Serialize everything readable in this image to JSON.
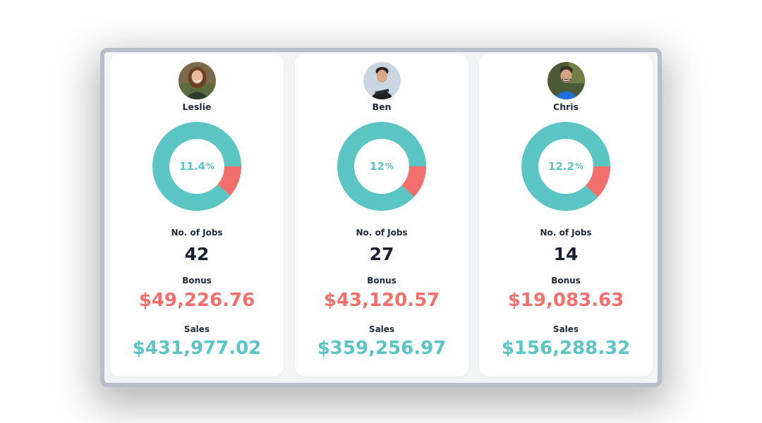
{
  "colors": {
    "teal": "#5bc5c3",
    "coral": "#f36f6c",
    "dark": "#1a2030"
  },
  "labels": {
    "jobs": "No. of Jobs",
    "bonus": "Bonus",
    "sales": "Sales"
  },
  "people": [
    {
      "name": "Leslie",
      "pct_value": "11.4",
      "pct_sign": "%",
      "pct_fraction": 0.114,
      "jobs": "42",
      "bonus": "$49,226.76",
      "sales": "$431,977.02"
    },
    {
      "name": "Ben",
      "pct_value": "12",
      "pct_sign": "%",
      "pct_fraction": 0.12,
      "jobs": "27",
      "bonus": "$43,120.57",
      "sales": "$359,256.97"
    },
    {
      "name": "Chris",
      "pct_value": "12.2",
      "pct_sign": "%",
      "pct_fraction": 0.122,
      "jobs": "14",
      "bonus": "$19,083.63",
      "sales": "$156,288.32"
    }
  ]
}
